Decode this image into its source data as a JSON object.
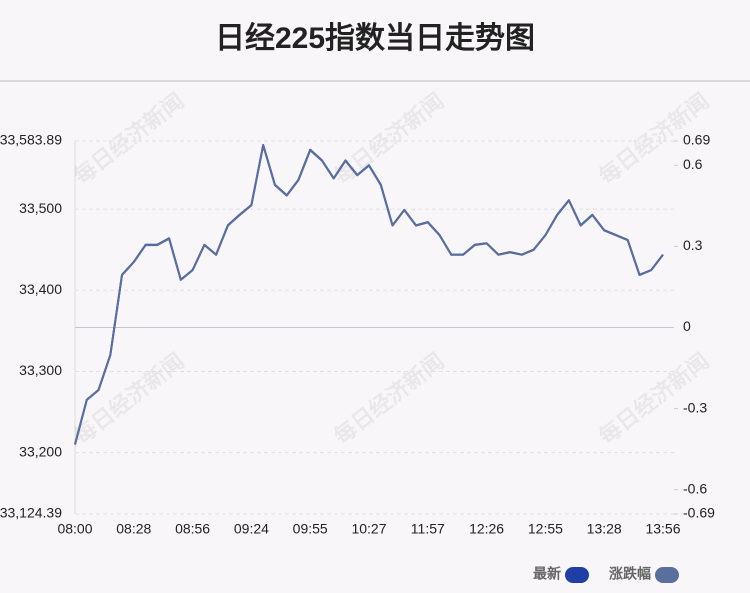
{
  "chart_data": {
    "type": "line",
    "title": "日经225指数当日走势图",
    "watermark": "每日经济新闻",
    "categories": [
      "08:00",
      null,
      null,
      null,
      null,
      "08:28",
      null,
      null,
      null,
      null,
      "08:56",
      null,
      null,
      null,
      null,
      "09:24",
      null,
      null,
      null,
      null,
      "09:55",
      null,
      null,
      null,
      null,
      "10:27",
      null,
      null,
      null,
      null,
      "11:57",
      null,
      null,
      null,
      null,
      "12:26",
      null,
      null,
      null,
      null,
      "12:55",
      null,
      null,
      null,
      null,
      "13:28",
      null,
      null,
      null,
      null,
      "13:56"
    ],
    "series": [
      {
        "name": "最新",
        "color": "#1f3fa6",
        "values": [
          33210,
          33265,
          33277,
          33320,
          33419,
          33435,
          33456,
          33456,
          33464,
          33413,
          33425,
          33456,
          33444,
          33480,
          33493,
          33505,
          33579,
          33530,
          33517,
          33536,
          33573,
          33560,
          33538,
          33560,
          33542,
          33554,
          33530,
          33480,
          33499,
          33480,
          33484,
          33468,
          33444,
          33444,
          33456,
          33458,
          33444,
          33447,
          33444,
          33450,
          33468,
          33493,
          33511,
          33480,
          33493,
          33474,
          33468,
          33462,
          33419,
          33425,
          33444
        ]
      },
      {
        "name": "涨跌幅",
        "color": "#5a6f9d",
        "axis": "y2",
        "values": [
          -0.432,
          -0.267,
          -0.231,
          -0.102,
          0.194,
          0.242,
          0.305,
          0.305,
          0.329,
          0.176,
          0.212,
          0.305,
          0.269,
          0.377,
          0.416,
          0.452,
          0.674,
          0.527,
          0.488,
          0.545,
          0.656,
          0.617,
          0.551,
          0.617,
          0.563,
          0.599,
          0.527,
          0.377,
          0.434,
          0.377,
          0.389,
          0.341,
          0.269,
          0.269,
          0.305,
          0.311,
          0.269,
          0.278,
          0.269,
          0.287,
          0.341,
          0.416,
          0.47,
          0.377,
          0.416,
          0.359,
          0.341,
          0.323,
          0.194,
          0.212,
          0.269
        ]
      }
    ],
    "ylim": [
      33124.39,
      33583.89
    ],
    "yticks": [
      {
        "value": 33124.39,
        "label": "33,124.39"
      },
      {
        "value": 33200,
        "label": "33,200"
      },
      {
        "value": 33300,
        "label": "33,300"
      },
      {
        "value": 33400,
        "label": "33,400"
      },
      {
        "value": 33500,
        "label": "33,500"
      },
      {
        "value": 33583.89,
        "label": "33,583.89"
      }
    ],
    "y2lim": [
      -0.69,
      0.69
    ],
    "y2ticks": [
      -0.69,
      -0.6,
      -0.3,
      0,
      0.3,
      0.6,
      0.69
    ],
    "grid": true
  }
}
